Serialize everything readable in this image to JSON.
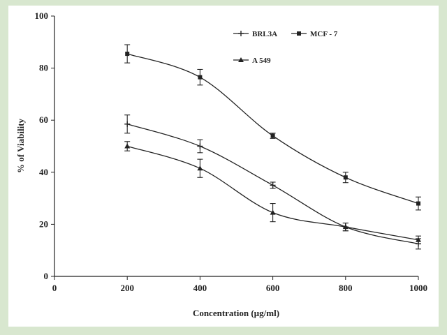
{
  "chart_data": {
    "type": "line",
    "xlabel": "Concentration (µg/ml)",
    "ylabel": "% of Viability",
    "xlim": [
      0,
      1000
    ],
    "ylim": [
      0,
      100
    ],
    "x_ticks": [
      0,
      200,
      400,
      600,
      800,
      1000
    ],
    "y_ticks": [
      0,
      20,
      40,
      60,
      80,
      100
    ],
    "grid": false,
    "legend_position": "top-right",
    "x": [
      200,
      400,
      600,
      800,
      1000
    ],
    "series": [
      {
        "name": "BRL3A",
        "marker": "plus",
        "values": [
          58.5,
          50.0,
          35.0,
          19.0,
          12.5
        ],
        "errors": [
          3.5,
          2.5,
          1.2,
          1.5,
          2.0
        ]
      },
      {
        "name": "MCF - 7",
        "marker": "square",
        "values": [
          85.5,
          76.5,
          54.0,
          38.0,
          28.0
        ],
        "errors": [
          3.5,
          3.0,
          1.0,
          2.0,
          2.5
        ]
      },
      {
        "name": "A 549",
        "marker": "triangle",
        "values": [
          50.0,
          41.5,
          24.5,
          19.0,
          14.0
        ],
        "errors": [
          1.8,
          3.5,
          3.5,
          1.5,
          1.5
        ]
      }
    ],
    "colors": {
      "line": "#222222",
      "background": "#d8e7cf",
      "panel": "#ffffff"
    }
  }
}
